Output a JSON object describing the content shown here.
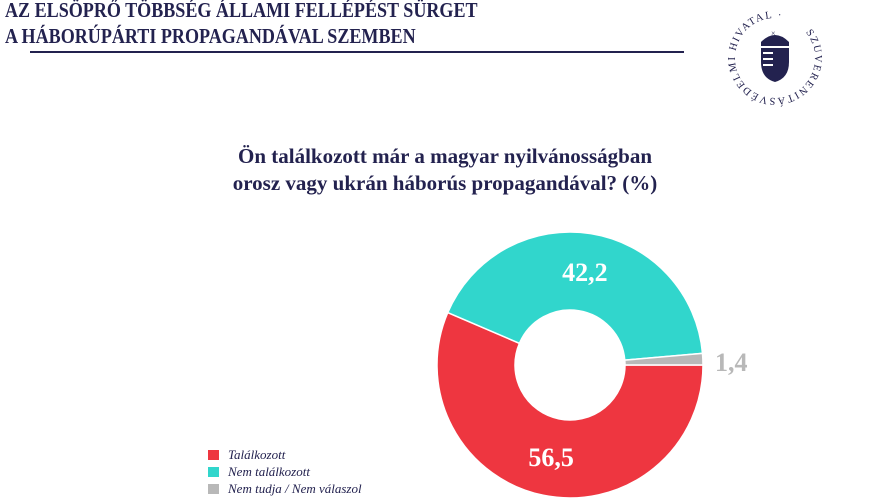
{
  "header": {
    "line1": "AZ ELSÖPRŐ TÖBBSÉG ÁLLAMI FELLÉPÉST SÜRGET",
    "line2": "A HÁBORÚPÁRTI PROPAGANDÁVAL SZEMBEN"
  },
  "logo": {
    "text": "SZUVERENITÁSVÉDELMI HIVATAL"
  },
  "chart_data": {
    "type": "pie",
    "donut": true,
    "title": "Ön találkozott már a magyar nyilvánosságban orosz vagy ukrán háborús propagandával? (%)",
    "title_lines": [
      "Ön találkozott már a magyar nyilvánosságban",
      "orosz vagy ukrán háborús propagandával? (%)"
    ],
    "slices": [
      {
        "name": "Találkozott",
        "value": 56.5,
        "label": "56,5",
        "color": "#ee3640"
      },
      {
        "name": "Nem találkozott",
        "value": 42.2,
        "label": "42,2",
        "color": "#31d6cc"
      },
      {
        "name": "Nem tudja / Nem válaszol",
        "value": 1.4,
        "label": "1,4",
        "color": "#b8b8b8"
      }
    ],
    "legend_position": "bottom-left"
  }
}
